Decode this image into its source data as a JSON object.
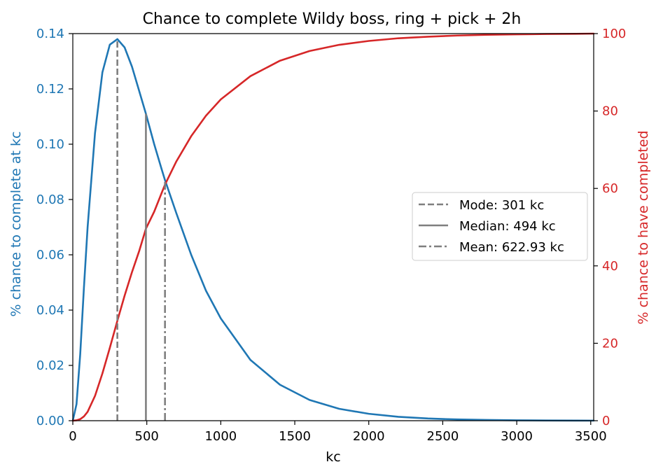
{
  "chart_data": {
    "type": "line",
    "title": "Chance to complete Wildy boss, ring + pick + 2h",
    "xlabel": "kc",
    "ylabel_left": "% chance to complete at kc",
    "ylabel_right": "% chance to have completed",
    "xlim": [
      0,
      3520
    ],
    "ylim_left": [
      0,
      0.14
    ],
    "ylim_right": [
      0,
      100
    ],
    "x_ticks": [
      "0",
      "500",
      "1000",
      "1500",
      "2000",
      "2500",
      "3000",
      "3500"
    ],
    "y_left_ticks": [
      "0.00",
      "0.02",
      "0.04",
      "0.06",
      "0.08",
      "0.10",
      "0.12",
      "0.14"
    ],
    "y_right_ticks": [
      "0",
      "20",
      "40",
      "60",
      "80",
      "100"
    ],
    "x_tick_values": [
      0,
      500,
      1000,
      1500,
      2000,
      2500,
      3000,
      3500
    ],
    "y_left_tick_values": [
      0,
      0.02,
      0.04,
      0.06,
      0.08,
      0.1,
      0.12,
      0.14
    ],
    "y_right_tick_values": [
      0,
      20,
      40,
      60,
      80,
      100
    ],
    "grid": false,
    "legend_position": "center-right",
    "colors": {
      "left_series": "#1f77b4",
      "right_series": "#d62728",
      "markers": "#7f7f7f",
      "axis": "#000000"
    },
    "series": [
      {
        "axis": "left",
        "color": "#1f77b4",
        "x": [
          0,
          25,
          50,
          75,
          100,
          150,
          200,
          250,
          301,
          350,
          400,
          450,
          494,
          550,
          600,
          623,
          700,
          800,
          900,
          1000,
          1200,
          1400,
          1600,
          1800,
          2000,
          2200,
          2400,
          2600,
          2800,
          3000,
          3200,
          3400,
          3520
        ],
        "y": [
          0,
          0.006,
          0.024,
          0.048,
          0.07,
          0.104,
          0.126,
          0.136,
          0.138,
          0.135,
          0.128,
          0.119,
          0.111,
          0.1,
          0.091,
          0.087,
          0.075,
          0.06,
          0.047,
          0.037,
          0.022,
          0.013,
          0.0075,
          0.0043,
          0.0025,
          0.0014,
          0.0008,
          0.00045,
          0.00026,
          0.00015,
          8e-05,
          5e-05,
          3e-05
        ]
      },
      {
        "axis": "right",
        "color": "#d62728",
        "x": [
          0,
          25,
          50,
          75,
          100,
          150,
          200,
          250,
          301,
          350,
          400,
          450,
          494,
          550,
          600,
          623,
          700,
          800,
          900,
          1000,
          1200,
          1400,
          1600,
          1800,
          2000,
          2200,
          2400,
          2600,
          2800,
          3000,
          3200,
          3400,
          3520
        ],
        "y": [
          0,
          0.1,
          0.4,
          1.1,
          2.3,
          6.4,
          12.2,
          18.8,
          25.8,
          32.3,
          38.4,
          44.0,
          49.6,
          54.0,
          58.8,
          61.0,
          67.0,
          73.5,
          78.8,
          83.0,
          89.0,
          93.0,
          95.5,
          97.1,
          98.1,
          98.8,
          99.2,
          99.5,
          99.7,
          99.8,
          99.9,
          99.95,
          100
        ]
      }
    ],
    "markers": [
      {
        "label": "Mode: 301 kc",
        "x": 301,
        "style": "dashed",
        "y_top": 0.138
      },
      {
        "label": "Median: 494 kc",
        "x": 494,
        "style": "solid",
        "y_top": 0.111
      },
      {
        "label": "Mean: 622.93 kc",
        "x": 622.93,
        "style": "dashdot",
        "y_top": 0.087
      }
    ]
  }
}
